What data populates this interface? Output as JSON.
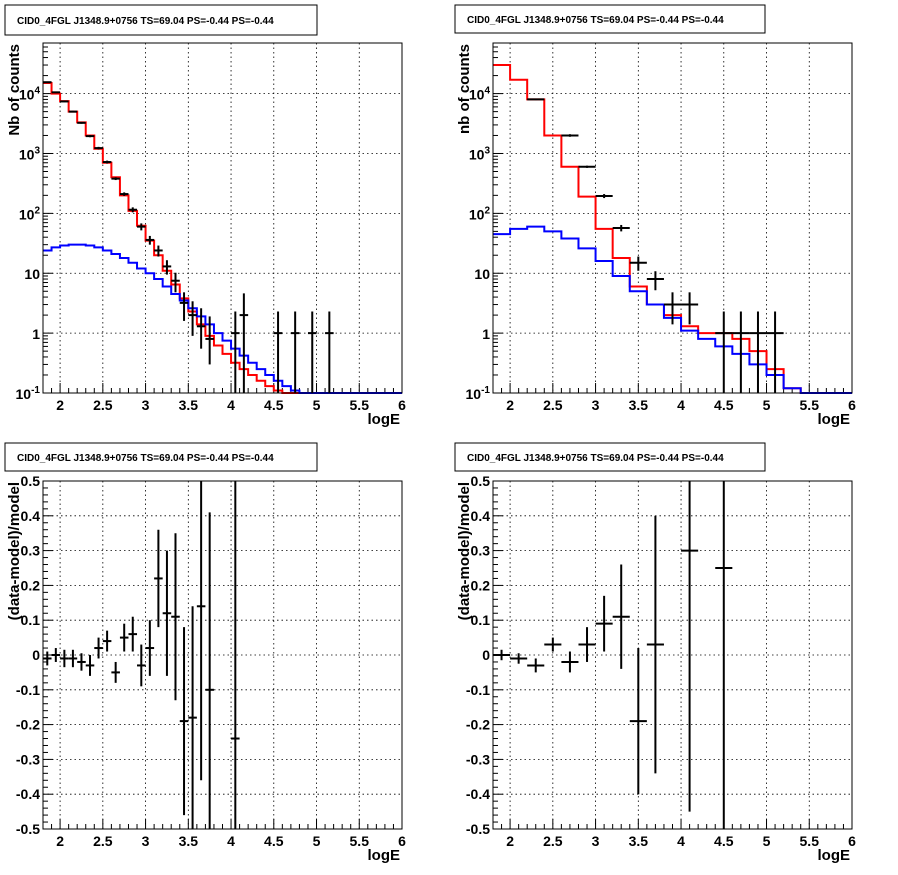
{
  "chart_data": [
    {
      "type": "line",
      "title": "CID0_4FGL J1348.9+0756 TS=69.04 PS=-0.44 PS=-0.44",
      "xlabel": "logE",
      "ylabel": "Nb of counts",
      "yscale": "log",
      "xlim": [
        1.8,
        6.0
      ],
      "ylim": [
        0.1,
        70000
      ],
      "xticks": [
        "2",
        "2.5",
        "3",
        "3.5",
        "4",
        "4.5",
        "5",
        "5.5",
        "6"
      ],
      "yticks": [
        "10^-1",
        "1",
        "10",
        "10^2",
        "10^3",
        "10^4"
      ],
      "grid": true,
      "bin_edges": [
        1.8,
        1.9,
        2.0,
        2.1,
        2.2,
        2.3,
        2.4,
        2.5,
        2.6,
        2.7,
        2.8,
        2.9,
        3.0,
        3.1,
        3.2,
        3.3,
        3.4,
        3.5,
        3.6,
        3.7,
        3.8,
        3.9,
        4.0,
        4.1,
        4.2,
        4.3,
        4.4,
        4.5,
        4.6,
        4.7,
        4.8,
        4.9,
        5.0,
        5.1,
        5.2,
        5.3,
        5.4,
        5.5,
        5.6,
        5.7,
        5.8,
        5.9,
        6.0
      ],
      "series": [
        {
          "kind": "model-total",
          "color": "#ff0000",
          "values": [
            15000,
            10000,
            7500,
            5000,
            3300,
            2000,
            1200,
            700,
            400,
            200,
            110,
            62,
            35,
            20,
            11,
            6.5,
            3.8,
            2.3,
            1.4,
            0.9,
            0.62,
            0.45,
            0.32,
            0.25,
            0.2,
            0.16,
            0.13,
            0.11,
            0.1,
            0.1,
            0.1,
            0.1,
            0.1,
            0.1,
            0.1,
            0.1,
            0.1,
            0.1,
            0.1,
            0.1,
            0.1,
            0.1
          ]
        },
        {
          "kind": "model-source",
          "color": "#0000ff",
          "values": [
            24,
            27,
            29,
            30,
            30,
            29,
            27,
            24,
            21,
            18,
            15,
            12,
            10,
            8,
            6,
            4.5,
            3.5,
            2.6,
            1.9,
            1.4,
            1.0,
            0.75,
            0.55,
            0.42,
            0.32,
            0.25,
            0.2,
            0.16,
            0.13,
            0.11,
            0.1,
            0.1,
            0.1,
            0.1,
            0.1,
            0.1,
            0.1,
            0.1,
            0.1,
            0.1,
            0.1,
            0.1
          ]
        },
        {
          "kind": "data",
          "color": "#000000",
          "points": [
            {
              "x": 1.85,
              "y": 15500,
              "lo": 15200,
              "hi": 15800
            },
            {
              "x": 1.95,
              "y": 10500,
              "lo": 10200,
              "hi": 10800
            },
            {
              "x": 2.05,
              "y": 7400,
              "lo": 7200,
              "hi": 7600
            },
            {
              "x": 2.15,
              "y": 5000,
              "lo": 4850,
              "hi": 5150
            },
            {
              "x": 2.25,
              "y": 3250,
              "lo": 3140,
              "hi": 3360
            },
            {
              "x": 2.35,
              "y": 1950,
              "lo": 1870,
              "hi": 2030
            },
            {
              "x": 2.45,
              "y": 1230,
              "lo": 1170,
              "hi": 1290
            },
            {
              "x": 2.55,
              "y": 720,
              "lo": 680,
              "hi": 760
            },
            {
              "x": 2.65,
              "y": 380,
              "lo": 360,
              "hi": 400
            },
            {
              "x": 2.75,
              "y": 210,
              "lo": 196,
              "hi": 224
            },
            {
              "x": 2.85,
              "y": 115,
              "lo": 104,
              "hi": 126
            },
            {
              "x": 2.95,
              "y": 60,
              "lo": 52,
              "hi": 68
            },
            {
              "x": 3.05,
              "y": 36,
              "lo": 30,
              "hi": 42
            },
            {
              "x": 3.15,
              "y": 24,
              "lo": 19,
              "hi": 29
            },
            {
              "x": 3.25,
              "y": 13,
              "lo": 9.5,
              "hi": 16.5
            },
            {
              "x": 3.35,
              "y": 7.5,
              "lo": 4.8,
              "hi": 10.2
            },
            {
              "x": 3.45,
              "y": 3.2,
              "lo": 1.6,
              "hi": 4.8
            },
            {
              "x": 3.55,
              "y": 2,
              "lo": 0.9,
              "hi": 3.4
            },
            {
              "x": 3.65,
              "y": 1.3,
              "lo": 0.55,
              "hi": 2.6
            },
            {
              "x": 3.75,
              "y": 0.8,
              "lo": 0.3,
              "hi": 1.9
            },
            {
              "x": 4.05,
              "y": 1,
              "lo": 0.1,
              "hi": 2.3
            },
            {
              "x": 4.15,
              "y": 2,
              "lo": 0.1,
              "hi": 4.6
            },
            {
              "x": 4.55,
              "y": 1,
              "lo": 0.1,
              "hi": 2.3
            },
            {
              "x": 4.75,
              "y": 1,
              "lo": 0.1,
              "hi": 2.3
            },
            {
              "x": 4.95,
              "y": 1,
              "lo": 0.1,
              "hi": 2.3
            },
            {
              "x": 5.15,
              "y": 1,
              "lo": 0.1,
              "hi": 2.3
            }
          ]
        }
      ]
    },
    {
      "type": "line",
      "title": "CID0_4FGL J1348.9+0756 TS=69.04 PS=-0.44 PS=-0.44",
      "xlabel": "logE",
      "ylabel": "nb of counts",
      "yscale": "log",
      "xlim": [
        1.8,
        6.0
      ],
      "ylim": [
        0.1,
        70000
      ],
      "xticks": [
        "2",
        "2.5",
        "3",
        "3.5",
        "4",
        "4.5",
        "5",
        "5.5",
        "6"
      ],
      "yticks": [
        "10^-1",
        "1",
        "10",
        "10^2",
        "10^3",
        "10^4"
      ],
      "grid": true,
      "bin_edges": [
        1.8,
        2.0,
        2.2,
        2.4,
        2.6,
        2.8,
        3.0,
        3.2,
        3.4,
        3.6,
        3.8,
        4.0,
        4.2,
        4.4,
        4.6,
        4.8,
        5.0,
        5.2,
        5.4,
        5.6,
        5.8,
        6.0
      ],
      "series": [
        {
          "kind": "model-total",
          "color": "#ff0000",
          "values": [
            30000,
            17000,
            8000,
            2000,
            600,
            190,
            55,
            18,
            6,
            3,
            2,
            1.3,
            1,
            1,
            0.8,
            0.5,
            0.25,
            0.12,
            0.1,
            0.1,
            0.1
          ]
        },
        {
          "kind": "model-source",
          "color": "#0000ff",
          "values": [
            45,
            55,
            60,
            50,
            38,
            26,
            16,
            9,
            5,
            3,
            1.8,
            1.1,
            0.8,
            0.6,
            0.45,
            0.3,
            0.2,
            0.12,
            0.1,
            0.1,
            0.1
          ]
        },
        {
          "kind": "data",
          "color": "#000000",
          "points": [
            {
              "x": 2.3,
              "y": 8000,
              "lo": 7800,
              "hi": 8200
            },
            {
              "x": 2.7,
              "y": 2000,
              "lo": 1900,
              "hi": 2100
            },
            {
              "x": 2.9,
              "y": 600,
              "lo": 575,
              "hi": 625
            },
            {
              "x": 3.1,
              "y": 195,
              "lo": 180,
              "hi": 210
            },
            {
              "x": 3.3,
              "y": 57,
              "lo": 50,
              "hi": 64
            },
            {
              "x": 3.5,
              "y": 15,
              "lo": 11,
              "hi": 19
            },
            {
              "x": 3.7,
              "y": 8,
              "lo": 5.2,
              "hi": 10.8
            },
            {
              "x": 3.9,
              "y": 3,
              "lo": 1.4,
              "hi": 4.8
            },
            {
              "x": 4.1,
              "y": 3,
              "lo": 1.4,
              "hi": 4.8
            },
            {
              "x": 4.5,
              "y": 1,
              "lo": 0.1,
              "hi": 2.3
            },
            {
              "x": 4.7,
              "y": 1,
              "lo": 0.1,
              "hi": 2.3
            },
            {
              "x": 4.9,
              "y": 1,
              "lo": 0.1,
              "hi": 2.3
            },
            {
              "x": 5.1,
              "y": 1,
              "lo": 0.1,
              "hi": 2.3
            }
          ]
        }
      ]
    },
    {
      "type": "scatter",
      "title": "CID0_4FGL J1348.9+0756 TS=69.04 PS=-0.44 PS=-0.44",
      "xlabel": "logE",
      "ylabel": "(data-model)/model",
      "xlim": [
        1.8,
        6.0
      ],
      "ylim": [
        -0.5,
        0.5
      ],
      "xticks": [
        "2",
        "2.5",
        "3",
        "3.5",
        "4",
        "4.5",
        "5",
        "5.5",
        "6"
      ],
      "yticks": [
        "-0.5",
        "-0.4",
        "-0.3",
        "-0.2",
        "-0.1",
        "0",
        "0.1",
        "0.2",
        "0.3",
        "0.4",
        "0.5"
      ],
      "grid": true,
      "points": [
        {
          "x": 1.85,
          "y": -0.01,
          "err": 0.02
        },
        {
          "x": 1.95,
          "y": 0.0,
          "err": 0.02
        },
        {
          "x": 2.05,
          "y": -0.01,
          "err": 0.025
        },
        {
          "x": 2.15,
          "y": -0.01,
          "err": 0.025
        },
        {
          "x": 2.25,
          "y": -0.02,
          "err": 0.025
        },
        {
          "x": 2.35,
          "y": -0.03,
          "err": 0.03
        },
        {
          "x": 2.45,
          "y": 0.02,
          "err": 0.03
        },
        {
          "x": 2.55,
          "y": 0.04,
          "err": 0.03
        },
        {
          "x": 2.65,
          "y": -0.05,
          "err": 0.03
        },
        {
          "x": 2.75,
          "y": 0.05,
          "err": 0.04
        },
        {
          "x": 2.85,
          "y": 0.06,
          "err": 0.05
        },
        {
          "x": 2.95,
          "y": -0.03,
          "err": 0.06
        },
        {
          "x": 3.05,
          "y": 0.02,
          "err": 0.08
        },
        {
          "x": 3.15,
          "y": 0.22,
          "err": 0.14
        },
        {
          "x": 3.25,
          "y": 0.12,
          "err": 0.18
        },
        {
          "x": 3.35,
          "y": 0.11,
          "err": 0.24
        },
        {
          "x": 3.45,
          "y": -0.19,
          "err": 0.27
        },
        {
          "x": 3.55,
          "y": -0.18,
          "err": 0.32
        },
        {
          "x": 3.65,
          "y": 0.14,
          "err": 0.5
        },
        {
          "x": 3.75,
          "y": -0.1,
          "err": 0.51
        },
        {
          "x": 4.05,
          "y": -0.24,
          "err": 0.9
        }
      ]
    },
    {
      "type": "scatter",
      "title": "CID0_4FGL J1348.9+0756 TS=69.04 PS=-0.44 PS=-0.44",
      "xlabel": "logE",
      "ylabel": "(data-model)/model",
      "xlim": [
        1.8,
        6.0
      ],
      "ylim": [
        -0.5,
        0.5
      ],
      "xticks": [
        "2",
        "2.5",
        "3",
        "3.5",
        "4",
        "4.5",
        "5",
        "5.5",
        "6"
      ],
      "yticks": [
        "-0.5",
        "-0.4",
        "-0.3",
        "-0.2",
        "-0.1",
        "0",
        "0.1",
        "0.2",
        "0.3",
        "0.4",
        "0.5"
      ],
      "grid": true,
      "points": [
        {
          "x": 1.9,
          "y": 0.0,
          "err": 0.015
        },
        {
          "x": 2.1,
          "y": -0.01,
          "err": 0.015
        },
        {
          "x": 2.3,
          "y": -0.03,
          "err": 0.02
        },
        {
          "x": 2.5,
          "y": 0.03,
          "err": 0.02
        },
        {
          "x": 2.7,
          "y": -0.02,
          "err": 0.03
        },
        {
          "x": 2.9,
          "y": 0.03,
          "err": 0.05
        },
        {
          "x": 3.1,
          "y": 0.09,
          "err": 0.08
        },
        {
          "x": 3.3,
          "y": 0.11,
          "err": 0.15
        },
        {
          "x": 3.5,
          "y": -0.19,
          "err": 0.21
        },
        {
          "x": 3.7,
          "y": 0.03,
          "err": 0.37
        },
        {
          "x": 4.1,
          "y": 0.3,
          "err": 0.75
        },
        {
          "x": 4.5,
          "y": 0.25,
          "err": 0.85
        }
      ]
    }
  ]
}
